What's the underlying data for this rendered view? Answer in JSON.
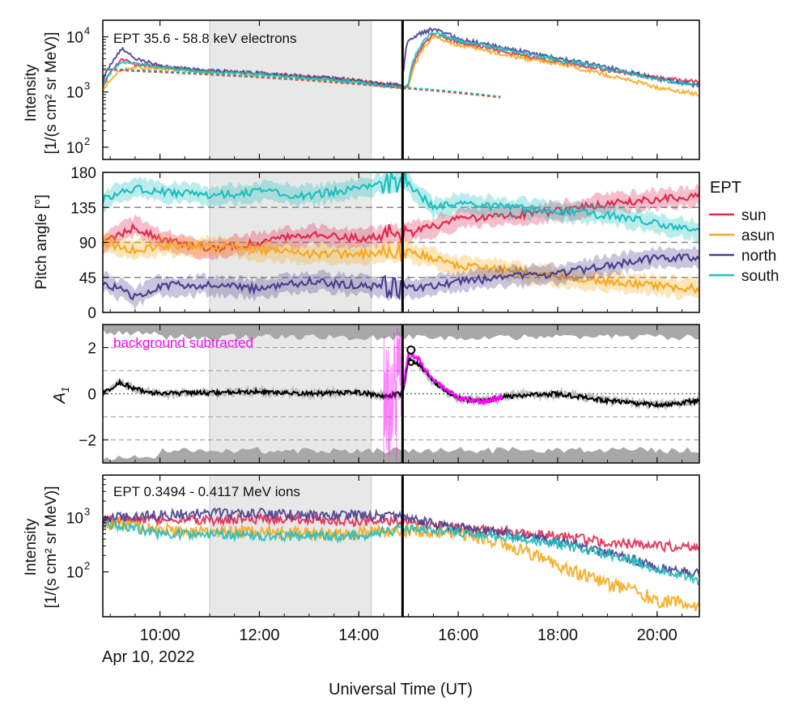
{
  "figure": {
    "xlabel": "Universal Time (UT)",
    "date_label": "Apr 10, 2022",
    "x_ticks": [
      "10:00",
      "12:00",
      "14:00",
      "16:00",
      "18:00",
      "20:00"
    ],
    "x_tick_hours": [
      10,
      12,
      14,
      16,
      18,
      20
    ],
    "x_range_hours": [
      8.85,
      20.85
    ],
    "shaded_interval_hours": [
      11.0,
      14.25
    ],
    "event_line_hour": 14.88
  },
  "colors": {
    "sun": "#e0294f",
    "asun": "#f8a81c",
    "north": "#4b3f8e",
    "south": "#1ebfbf",
    "magenta": "#ff00ff",
    "shade": "#e8e8e8",
    "gray": "#a8a8a8"
  },
  "legend": {
    "title": "EPT",
    "entries": [
      {
        "key": "sun",
        "label": "sun"
      },
      {
        "key": "asun",
        "label": "asun"
      },
      {
        "key": "north",
        "label": "north"
      },
      {
        "key": "south",
        "label": "south"
      }
    ]
  },
  "chart_data": [
    {
      "type": "line",
      "panel": "electron-intensity",
      "title": "EPT 35.6 - 58.8 keV electrons",
      "ylabel": "Intensity",
      "ylabel_unit": "[1/(s cm² sr MeV)]",
      "yscale": "log",
      "ylim": [
        60,
        20000
      ],
      "y_ticks": [
        {
          "v": 100,
          "label": "10",
          "exp": "2"
        },
        {
          "v": 1000,
          "label": "10",
          "exp": "3"
        },
        {
          "v": 10000,
          "label": "10",
          "exp": "4"
        }
      ],
      "x": [
        8.85,
        9.25,
        9.5,
        10.0,
        11.0,
        12.0,
        13.0,
        14.0,
        14.5,
        14.88,
        15.0,
        15.2,
        15.5,
        16.0,
        17.0,
        18.0,
        19.0,
        20.0,
        20.85
      ],
      "series": [
        {
          "name": "sun",
          "values": [
            1200,
            4000,
            3200,
            2800,
            2400,
            2200,
            1900,
            1600,
            1400,
            1300,
            1300,
            5000,
            11000,
            8000,
            5000,
            3500,
            2500,
            1800,
            1500
          ]
        },
        {
          "name": "asun",
          "values": [
            1100,
            2600,
            2800,
            2600,
            2300,
            2100,
            1800,
            1500,
            1300,
            1200,
            1200,
            4200,
            10000,
            7000,
            4500,
            3200,
            2000,
            1200,
            900
          ]
        },
        {
          "name": "north",
          "values": [
            1400,
            6000,
            4000,
            3000,
            2400,
            2200,
            1900,
            1600,
            1400,
            1300,
            9000,
            11000,
            14000,
            9000,
            6000,
            4000,
            2800,
            1700,
            1300
          ]
        },
        {
          "name": "south",
          "values": [
            1300,
            3500,
            3300,
            2800,
            2300,
            2100,
            1800,
            1500,
            1300,
            1200,
            1300,
            6000,
            12000,
            8500,
            5500,
            3800,
            2600,
            1700,
            1300
          ]
        }
      ],
      "background_fit": {
        "x": [
          8.85,
          14.88,
          16.9
        ],
        "values": [
          2600,
          1200,
          800
        ]
      }
    },
    {
      "type": "line",
      "panel": "pitch-angle",
      "ylabel": "Pitch angle [°]",
      "ylim": [
        0,
        180
      ],
      "y_ticks": [
        0,
        45,
        90,
        135,
        180
      ],
      "dashed_lines": [
        45,
        90,
        135
      ],
      "x": [
        8.85,
        9.5,
        10.0,
        11.0,
        12.0,
        13.0,
        14.0,
        14.88,
        15.5,
        16.0,
        17.0,
        18.0,
        19.0,
        20.0,
        20.85
      ],
      "series": [
        {
          "name": "sun",
          "values": [
            90,
            110,
            95,
            80,
            90,
            100,
            95,
            100,
            110,
            120,
            125,
            130,
            140,
            145,
            150
          ]
        },
        {
          "name": "asun",
          "values": [
            90,
            80,
            85,
            85,
            80,
            75,
            75,
            80,
            70,
            60,
            55,
            45,
            40,
            35,
            30
          ]
        },
        {
          "name": "north",
          "values": [
            40,
            20,
            35,
            35,
            30,
            40,
            35,
            30,
            35,
            40,
            45,
            50,
            60,
            70,
            70
          ]
        },
        {
          "name": "south",
          "values": [
            145,
            160,
            155,
            150,
            155,
            150,
            160,
            170,
            135,
            140,
            135,
            130,
            125,
            115,
            105
          ]
        }
      ]
    },
    {
      "type": "line",
      "panel": "anisotropy",
      "ylabel": "A",
      "ylabel_sub": "1",
      "ylim": [
        -3,
        3
      ],
      "y_ticks": [
        -2,
        0,
        2
      ],
      "dashed_lines": [
        -2,
        -1,
        1,
        2
      ],
      "dotted_lines": [
        0
      ],
      "annotation": "background subtracted",
      "x": [
        8.85,
        9.2,
        9.5,
        10.0,
        11.0,
        12.0,
        13.0,
        14.0,
        14.5,
        14.88,
        15.0,
        15.2,
        15.5,
        16.0,
        16.5,
        17.0,
        18.0,
        19.0,
        20.0,
        20.85
      ],
      "series": [
        {
          "name": "A1",
          "values": [
            0.0,
            0.5,
            0.2,
            0.0,
            0.05,
            0.1,
            0.0,
            0.05,
            -0.1,
            0.0,
            1.5,
            1.3,
            0.5,
            -0.2,
            -0.3,
            -0.1,
            0.0,
            -0.3,
            -0.5,
            -0.3
          ]
        },
        {
          "name": "A1 background subtracted",
          "x": [
            14.5,
            14.88,
            15.0,
            15.2,
            15.5,
            16.0,
            16.5,
            16.9
          ],
          "values": [
            0.0,
            0.2,
            1.8,
            1.5,
            0.6,
            -0.2,
            -0.35,
            -0.15
          ]
        }
      ],
      "markers": [
        {
          "x": 15.05,
          "y": 1.9
        },
        {
          "x": 15.05,
          "y": 1.35
        }
      ]
    },
    {
      "type": "line",
      "panel": "ion-intensity",
      "title": "EPT 0.3494 - 0.4117 MeV ions",
      "ylabel": "Intensity",
      "ylabel_unit": "[1/(s cm² sr MeV)]",
      "yscale": "log",
      "ylim": [
        15,
        6000
      ],
      "y_ticks": [
        {
          "v": 100,
          "label": "10",
          "exp": "2"
        },
        {
          "v": 1000,
          "label": "10",
          "exp": "3"
        }
      ],
      "x": [
        8.85,
        10.0,
        11.0,
        12.0,
        13.0,
        14.0,
        14.88,
        15.5,
        16.0,
        17.0,
        18.0,
        19.0,
        20.0,
        20.85
      ],
      "series": [
        {
          "name": "sun",
          "values": [
            900,
            900,
            900,
            950,
            900,
            850,
            900,
            700,
            650,
            550,
            450,
            350,
            300,
            280
          ]
        },
        {
          "name": "asun",
          "values": [
            800,
            600,
            550,
            550,
            500,
            500,
            600,
            550,
            500,
            300,
            120,
            60,
            30,
            25
          ]
        },
        {
          "name": "north",
          "values": [
            1000,
            1100,
            1200,
            1200,
            1100,
            1100,
            1000,
            750,
            650,
            500,
            350,
            220,
            120,
            90
          ]
        },
        {
          "name": "south",
          "values": [
            800,
            500,
            500,
            450,
            450,
            450,
            600,
            600,
            550,
            450,
            320,
            200,
            110,
            70
          ]
        }
      ]
    }
  ]
}
